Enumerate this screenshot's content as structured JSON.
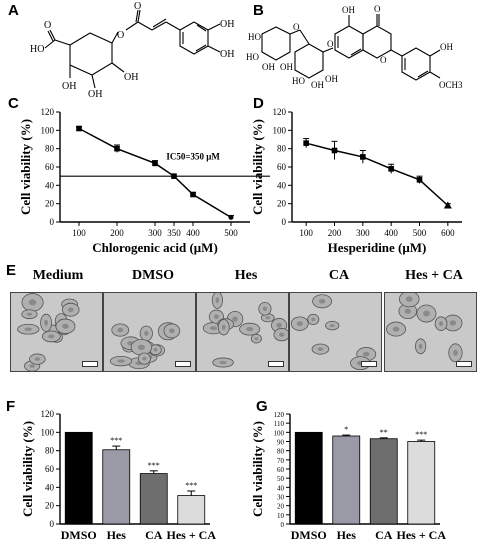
{
  "panel_letters": [
    "A",
    "B",
    "C",
    "D",
    "E",
    "F",
    "G"
  ],
  "structure_a": {
    "labels": [
      "O",
      "O",
      "HO",
      "OH",
      "OH",
      "OH",
      "OH",
      "OH",
      "O"
    ]
  },
  "structure_b": {
    "labels": [
      "OH",
      "O",
      "O",
      "O",
      "HO",
      "OH",
      "HO",
      "OH",
      "HO",
      "OH",
      "O",
      "OH",
      "OCH3",
      "OH"
    ]
  },
  "panel_e": {
    "labels": [
      "Medium",
      "DMSO",
      "Hes",
      "CA",
      "Hes + CA"
    ]
  },
  "chart_data": [
    {
      "panel": "C",
      "type": "line",
      "xlabel": "Chlorogenic acid (μM)",
      "ylabel": "Cell viability (%)",
      "x": [
        100,
        200,
        300,
        350,
        400,
        500
      ],
      "y": [
        102,
        80,
        64,
        50,
        30,
        5
      ],
      "error": [
        2,
        4,
        3,
        0,
        2,
        2
      ],
      "xticks": [
        "100",
        "200",
        "300",
        "350",
        "400",
        "500"
      ],
      "yticks": [
        "0",
        "20",
        "40",
        "60",
        "80",
        "100",
        "120"
      ],
      "ylim": [
        0,
        120
      ],
      "hline": 50,
      "annotation": "IC50=350 μM"
    },
    {
      "panel": "D",
      "type": "line",
      "xlabel": "Hesperidine (μM)",
      "ylabel": "Cell viability (%)",
      "x": [
        100,
        200,
        300,
        400,
        500,
        600
      ],
      "y": [
        86,
        78,
        71,
        58,
        46,
        18
      ],
      "error": [
        5,
        10,
        7,
        5,
        4,
        2
      ],
      "xticks": [
        "100",
        "200",
        "300",
        "400",
        "500",
        "600"
      ],
      "yticks": [
        "0",
        "20",
        "40",
        "60",
        "80",
        "100",
        "120"
      ],
      "ylim": [
        0,
        120
      ]
    },
    {
      "panel": "F",
      "type": "bar",
      "ylabel": "Cell viability (%)",
      "categories": [
        "DMSO",
        "Hes",
        "CA",
        "Hes + CA"
      ],
      "values": [
        100,
        81,
        55,
        31
      ],
      "error": [
        0,
        4,
        3,
        5
      ],
      "significance": [
        "",
        "***",
        "***",
        "***"
      ],
      "colors": [
        "#000000",
        "#9a9aa6",
        "#6e6e6e",
        "#dcdcdc"
      ],
      "yticks": [
        "0",
        "20",
        "40",
        "60",
        "80",
        "100",
        "120"
      ],
      "ylim": [
        0,
        120
      ]
    },
    {
      "panel": "G",
      "type": "bar",
      "ylabel": "Cell viability (%)",
      "categories": [
        "DMSO",
        "Hes",
        "CA",
        "Hes + CA"
      ],
      "values": [
        100,
        96,
        93,
        90
      ],
      "error": [
        0,
        1,
        1,
        1.5
      ],
      "significance": [
        "",
        "*",
        "**",
        "***"
      ],
      "colors": [
        "#000000",
        "#9a9aa6",
        "#6e6e6e",
        "#dcdcdc"
      ],
      "yticks": [
        "0",
        "10",
        "20",
        "30",
        "40",
        "50",
        "60",
        "70",
        "80",
        "90",
        "100",
        "110",
        "120"
      ],
      "ylim": [
        0,
        120
      ]
    }
  ]
}
